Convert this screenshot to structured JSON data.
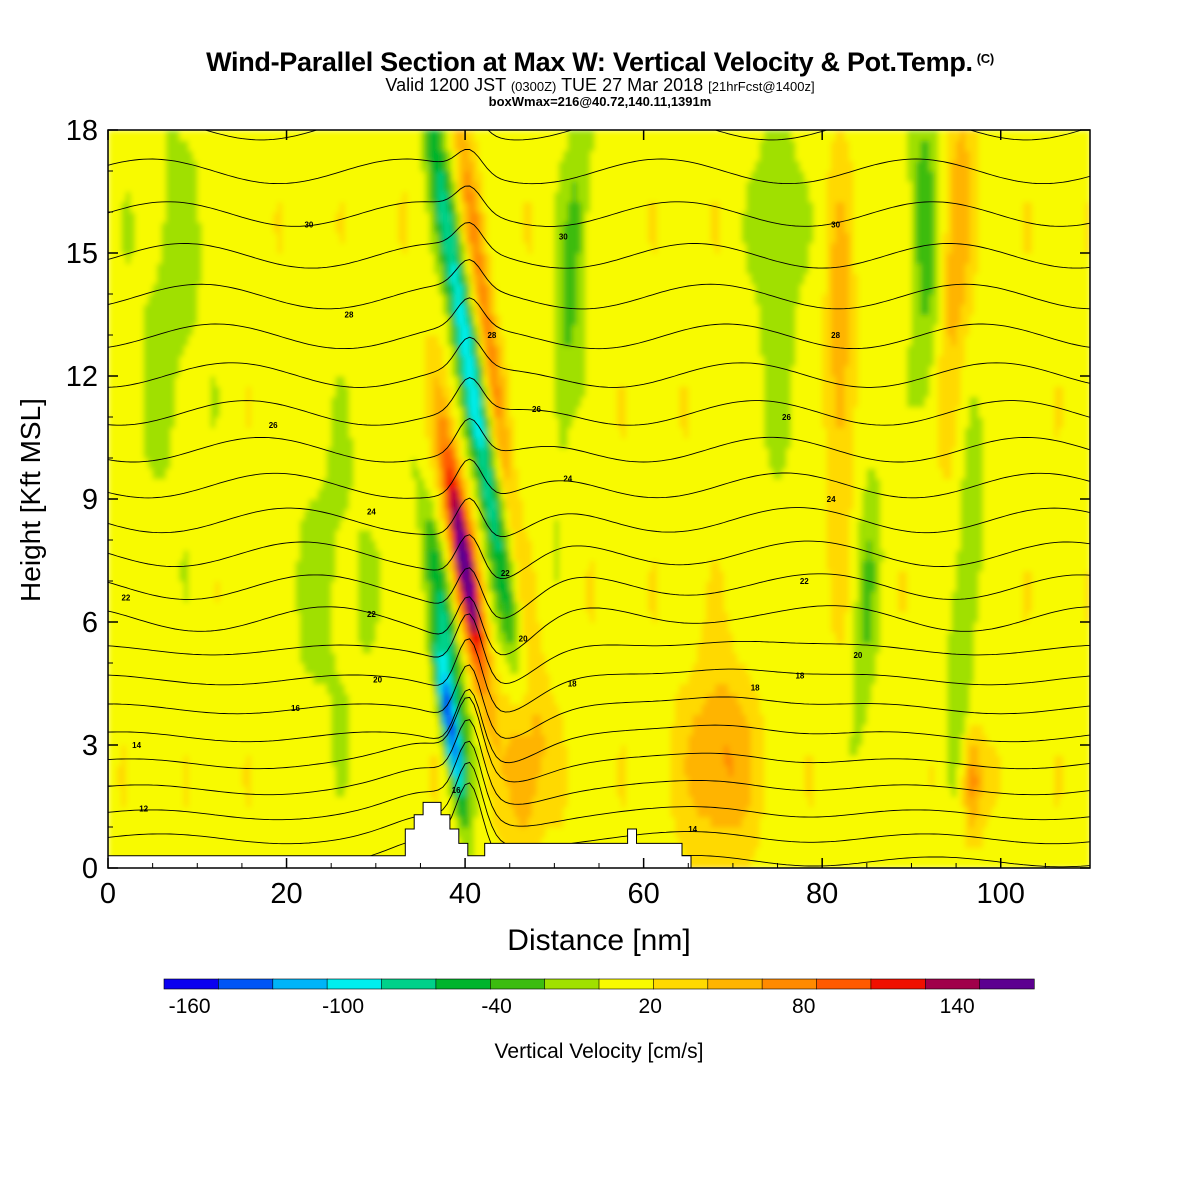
{
  "header": {
    "title": "Wind-Parallel Section at Max W: Vertical Velocity & Pot.Temp.",
    "title_mark": "(C)",
    "subtitle_a": "Valid 1200 JST",
    "subtitle_b": "(0300Z)",
    "subtitle_c": "TUE 27 Mar 2018",
    "subtitle_d": "[21hrFcst@1400z]",
    "subtitle2": "boxWmax=216@40.72,140.11,1391m"
  },
  "chart_data": {
    "type": "heatmap",
    "xlabel": "Distance [nm]",
    "ylabel": "Height [Kft MSL]",
    "xlim": [
      0,
      110
    ],
    "ylim": [
      0,
      18
    ],
    "x_ticks": [
      0,
      20,
      40,
      60,
      80,
      100
    ],
    "y_ticks": [
      0,
      3,
      6,
      9,
      12,
      15,
      18
    ],
    "colorbar": {
      "label": "Vertical Velocity [cm/s]",
      "min": -170,
      "max": 170,
      "step": 20,
      "tick_labels": [
        -160,
        -100,
        -40,
        20,
        80,
        140
      ],
      "colors": [
        "#0a00f0",
        "#0055f5",
        "#00b4f8",
        "#00eeee",
        "#00d18a",
        "#00b42c",
        "#3cbc10",
        "#a0e000",
        "#f8fa00",
        "#ffd900",
        "#ffb400",
        "#ff8a00",
        "#ff5a00",
        "#f01000",
        "#a0004a",
        "#5c0090"
      ]
    },
    "contour_labels": [
      {
        "x": 4.0,
        "y": 1.45,
        "text": "12"
      },
      {
        "x": 3.2,
        "y": 3.0,
        "text": "14"
      },
      {
        "x": 21.0,
        "y": 3.9,
        "text": "16"
      },
      {
        "x": 30.2,
        "y": 4.6,
        "text": "20"
      },
      {
        "x": 29.5,
        "y": 6.2,
        "text": "22"
      },
      {
        "x": 2.0,
        "y": 6.6,
        "text": "22"
      },
      {
        "x": 29.5,
        "y": 8.7,
        "text": "24"
      },
      {
        "x": 18.5,
        "y": 10.8,
        "text": "26"
      },
      {
        "x": 27.0,
        "y": 13.5,
        "text": "28"
      },
      {
        "x": 22.5,
        "y": 15.7,
        "text": "30"
      },
      {
        "x": 43.0,
        "y": 13.0,
        "text": "28"
      },
      {
        "x": 48.0,
        "y": 11.2,
        "text": "26"
      },
      {
        "x": 51.5,
        "y": 9.5,
        "text": "24"
      },
      {
        "x": 44.5,
        "y": 7.2,
        "text": "22"
      },
      {
        "x": 46.5,
        "y": 5.6,
        "text": "20"
      },
      {
        "x": 52.0,
        "y": 4.5,
        "text": "18"
      },
      {
        "x": 51.0,
        "y": 15.4,
        "text": "30"
      },
      {
        "x": 72.5,
        "y": 4.4,
        "text": "18"
      },
      {
        "x": 77.5,
        "y": 4.7,
        "text": "18"
      },
      {
        "x": 78.0,
        "y": 7.0,
        "text": "22"
      },
      {
        "x": 84.0,
        "y": 5.2,
        "text": "20"
      },
      {
        "x": 81.0,
        "y": 9.0,
        "text": "24"
      },
      {
        "x": 76.0,
        "y": 11.0,
        "text": "26"
      },
      {
        "x": 81.5,
        "y": 13.0,
        "text": "28"
      },
      {
        "x": 81.5,
        "y": 15.7,
        "text": "30"
      },
      {
        "x": 39.0,
        "y": 1.9,
        "text": "16"
      },
      {
        "x": 65.5,
        "y": 0.95,
        "text": "14"
      }
    ],
    "terrain": {
      "x": [
        0,
        33.3,
        33.3,
        34.3,
        34.3,
        35.3,
        35.3,
        37.3,
        37.3,
        38.3,
        38.3,
        39.3,
        39.3,
        40.3,
        40.3,
        42.2,
        42.2,
        58.2,
        58.2,
        59.2,
        59.2,
        64.3,
        64.3,
        65.3,
        65.3,
        110
      ],
      "y": [
        0.3,
        0.3,
        0.95,
        0.95,
        1.3,
        1.3,
        1.6,
        1.6,
        1.3,
        1.3,
        0.95,
        0.95,
        0.6,
        0.6,
        0.3,
        0.3,
        0.6,
        0.6,
        0.95,
        0.95,
        0.6,
        0.6,
        0.3,
        0.3,
        0.0,
        0.0
      ]
    }
  }
}
